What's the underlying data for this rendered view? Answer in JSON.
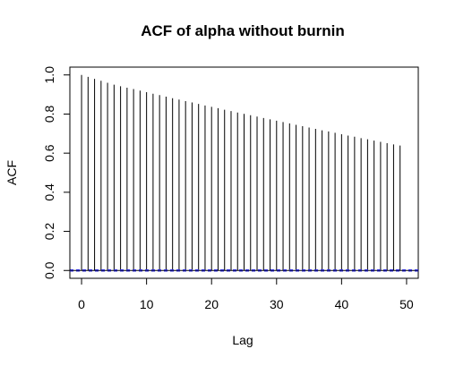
{
  "chart_data": {
    "type": "bar",
    "title": "ACF of alpha without burnin",
    "xlabel": "Lag",
    "ylabel": "ACF",
    "xlim": [
      -1.8,
      51.8
    ],
    "ylim": [
      -0.04,
      1.04
    ],
    "x_ticks": [
      0,
      10,
      20,
      30,
      40,
      50
    ],
    "y_ticks": [
      0.0,
      0.2,
      0.4,
      0.6,
      0.8,
      1.0
    ],
    "x_tick_labels": [
      "0",
      "10",
      "20",
      "30",
      "40",
      "50"
    ],
    "y_tick_labels": [
      "0.0",
      "0.2",
      "0.4",
      "0.6",
      "0.8",
      "1.0"
    ],
    "lags": [
      0,
      1,
      2,
      3,
      4,
      5,
      6,
      7,
      8,
      9,
      10,
      11,
      12,
      13,
      14,
      15,
      16,
      17,
      18,
      19,
      20,
      21,
      22,
      23,
      24,
      25,
      26,
      27,
      28,
      29,
      30,
      31,
      32,
      33,
      34,
      35,
      36,
      37,
      38,
      39,
      40,
      41,
      42,
      43,
      44,
      45,
      46,
      47,
      48,
      49
    ],
    "values": [
      1.0,
      0.99,
      0.98,
      0.97,
      0.96,
      0.95,
      0.942,
      0.935,
      0.928,
      0.92,
      0.912,
      0.904,
      0.897,
      0.889,
      0.881,
      0.874,
      0.866,
      0.859,
      0.852,
      0.844,
      0.837,
      0.83,
      0.822,
      0.815,
      0.808,
      0.801,
      0.794,
      0.787,
      0.78,
      0.773,
      0.766,
      0.759,
      0.752,
      0.745,
      0.738,
      0.731,
      0.724,
      0.717,
      0.711,
      0.704,
      0.697,
      0.69,
      0.684,
      0.677,
      0.671,
      0.664,
      0.658,
      0.651,
      0.645,
      0.639
    ],
    "zero_line_color": "#000000",
    "confidence_band": 0.0035,
    "confidence_band_color": "#2a2ad6",
    "grid": false,
    "legend": "none"
  }
}
